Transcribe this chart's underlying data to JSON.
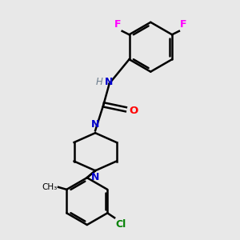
{
  "background_color": "#e8e8e8",
  "bond_color": "#000000",
  "N_color": "#0000cc",
  "O_color": "#ff0000",
  "F_color": "#ff00ff",
  "Cl_color": "#008000",
  "H_color": "#708090",
  "line_width": 1.8,
  "figsize": [
    3.0,
    3.0
  ],
  "dpi": 100,
  "xlim": [
    0,
    10
  ],
  "ylim": [
    0,
    10
  ]
}
